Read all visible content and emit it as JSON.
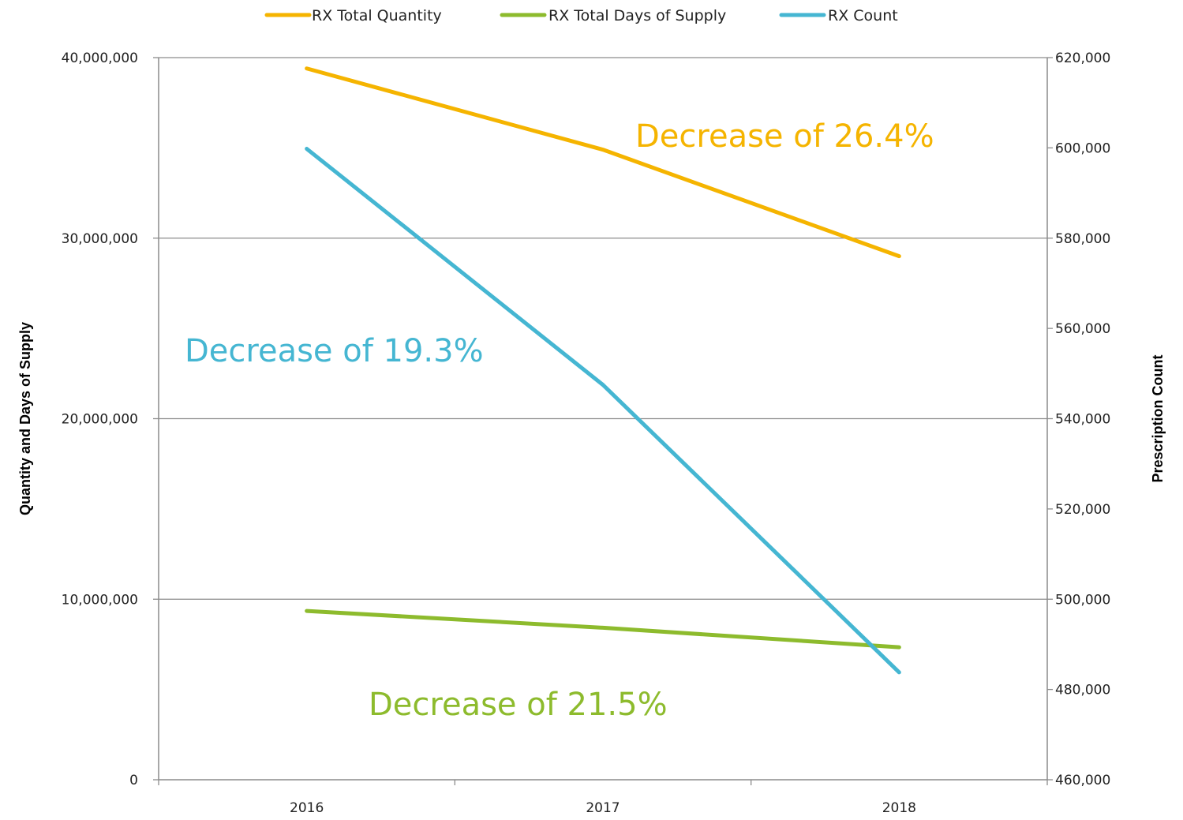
{
  "chart_data": {
    "type": "line",
    "categories": [
      "2016",
      "2017",
      "2018"
    ],
    "series": [
      {
        "name": "RX Total Quantity",
        "axis": "left",
        "color": "#F5B400",
        "values": [
          39400000,
          34900000,
          29000000
        ]
      },
      {
        "name": "RX Total Days of Supply",
        "axis": "left",
        "color": "#8DBB2D",
        "values": [
          9350000,
          8420000,
          7340000
        ]
      },
      {
        "name": "RX Count",
        "axis": "right",
        "color": "#45B6D2",
        "values": [
          599800,
          547500,
          483800
        ]
      }
    ],
    "y_left": {
      "label": "Quantity and Days of Supply",
      "range": [
        0,
        40000000
      ],
      "ticks": [
        0,
        10000000,
        20000000,
        30000000,
        40000000
      ],
      "tick_labels": [
        "0",
        "10,000,000",
        "20,000,000",
        "30,000,000",
        "40,000,000"
      ]
    },
    "y_right": {
      "label": "Prescription Count",
      "range": [
        460000,
        620000
      ],
      "ticks": [
        460000,
        480000,
        500000,
        520000,
        540000,
        560000,
        580000,
        600000,
        620000
      ],
      "tick_labels": [
        "460,000",
        "480,000",
        "500,000",
        "520,000",
        "540,000",
        "560,000",
        "580,000",
        "600,000",
        "620,000"
      ]
    },
    "grid": true,
    "legend_position": "top",
    "annotations": [
      {
        "text": "Decrease of 26.4%",
        "series": "RX Total Quantity"
      },
      {
        "text": "Decrease of 19.3%",
        "series": "RX Count"
      },
      {
        "text": "Decrease of 21.5%",
        "series": "RX Total Days of Supply"
      }
    ]
  }
}
